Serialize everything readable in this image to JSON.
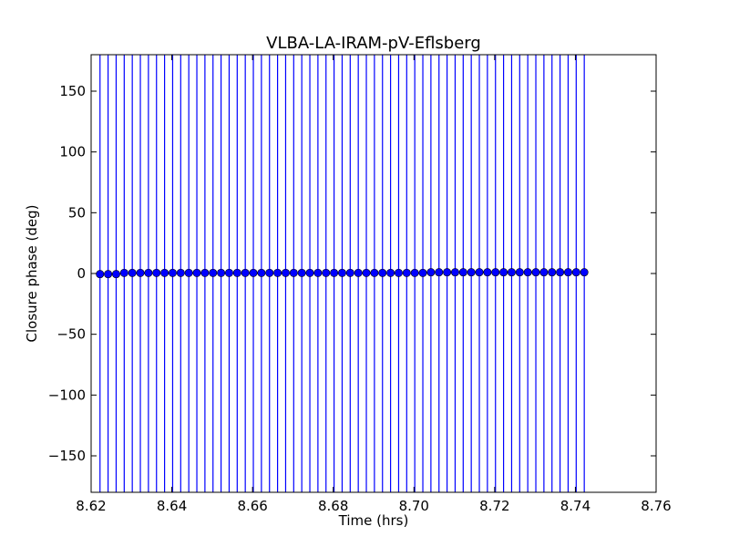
{
  "chart_data": {
    "type": "scatter",
    "title": "VLBA-LA-IRAM-pV-Eflsberg",
    "xlabel": "Time (hrs)",
    "ylabel": "Closure phase (deg)",
    "xlim": [
      8.62,
      8.76
    ],
    "ylim": [
      -180,
      180
    ],
    "xticks": [
      8.62,
      8.64,
      8.66,
      8.68,
      8.7,
      8.72,
      8.74,
      8.76
    ],
    "xtick_labels": [
      "8.62",
      "8.64",
      "8.66",
      "8.68",
      "8.70",
      "8.72",
      "8.74",
      "8.76"
    ],
    "yticks": [
      150,
      100,
      50,
      0,
      -50,
      -100,
      -150
    ],
    "ytick_labels": [
      "150",
      "100",
      "50",
      "0",
      "−50",
      "−100",
      "−150"
    ],
    "grid": false,
    "legend": "none",
    "series": [
      {
        "color": "#0000ff",
        "marker": "circle",
        "errorbars": "full-range (exceed axis limits)",
        "x": [
          8.6222,
          8.6242,
          8.6262,
          8.6282,
          8.6302,
          8.6322,
          8.6342,
          8.6362,
          8.6382,
          8.6402,
          8.6422,
          8.6442,
          8.6462,
          8.6482,
          8.6502,
          8.6522,
          8.6542,
          8.6562,
          8.6582,
          8.6602,
          8.6622,
          8.6642,
          8.6662,
          8.6682,
          8.6702,
          8.6722,
          8.6742,
          8.6762,
          8.6782,
          8.6802,
          8.6822,
          8.6842,
          8.6862,
          8.6882,
          8.6902,
          8.6922,
          8.6942,
          8.6962,
          8.6982,
          8.7002,
          8.7022,
          8.7042,
          8.7062,
          8.7082,
          8.7102,
          8.7122,
          8.7142,
          8.7162,
          8.7182,
          8.7202,
          8.7222,
          8.7242,
          8.7262,
          8.7282,
          8.7302,
          8.7322,
          8.7342,
          8.7362,
          8.7382,
          8.7402,
          8.7422
        ],
        "y": [
          -0.5,
          -0.5,
          -0.5,
          0.5,
          0.5,
          0.5,
          0.5,
          0.5,
          0.5,
          0.5,
          0.5,
          0.5,
          0.5,
          0.5,
          0.5,
          0.5,
          0.5,
          0.5,
          0.5,
          0.5,
          0.5,
          0.5,
          0.5,
          0.5,
          0.5,
          0.5,
          0.5,
          0.5,
          0.5,
          0.5,
          0.5,
          0.5,
          0.5,
          0.5,
          0.5,
          0.5,
          0.5,
          0.5,
          0.5,
          0.5,
          0.5,
          1.0,
          1.0,
          1.0,
          1.0,
          1.0,
          1.0,
          1.0,
          1.0,
          1.0,
          1.0,
          1.0,
          1.0,
          1.0,
          1.0,
          1.0,
          1.0,
          1.0,
          1.0,
          1.0,
          1.0
        ]
      }
    ]
  }
}
